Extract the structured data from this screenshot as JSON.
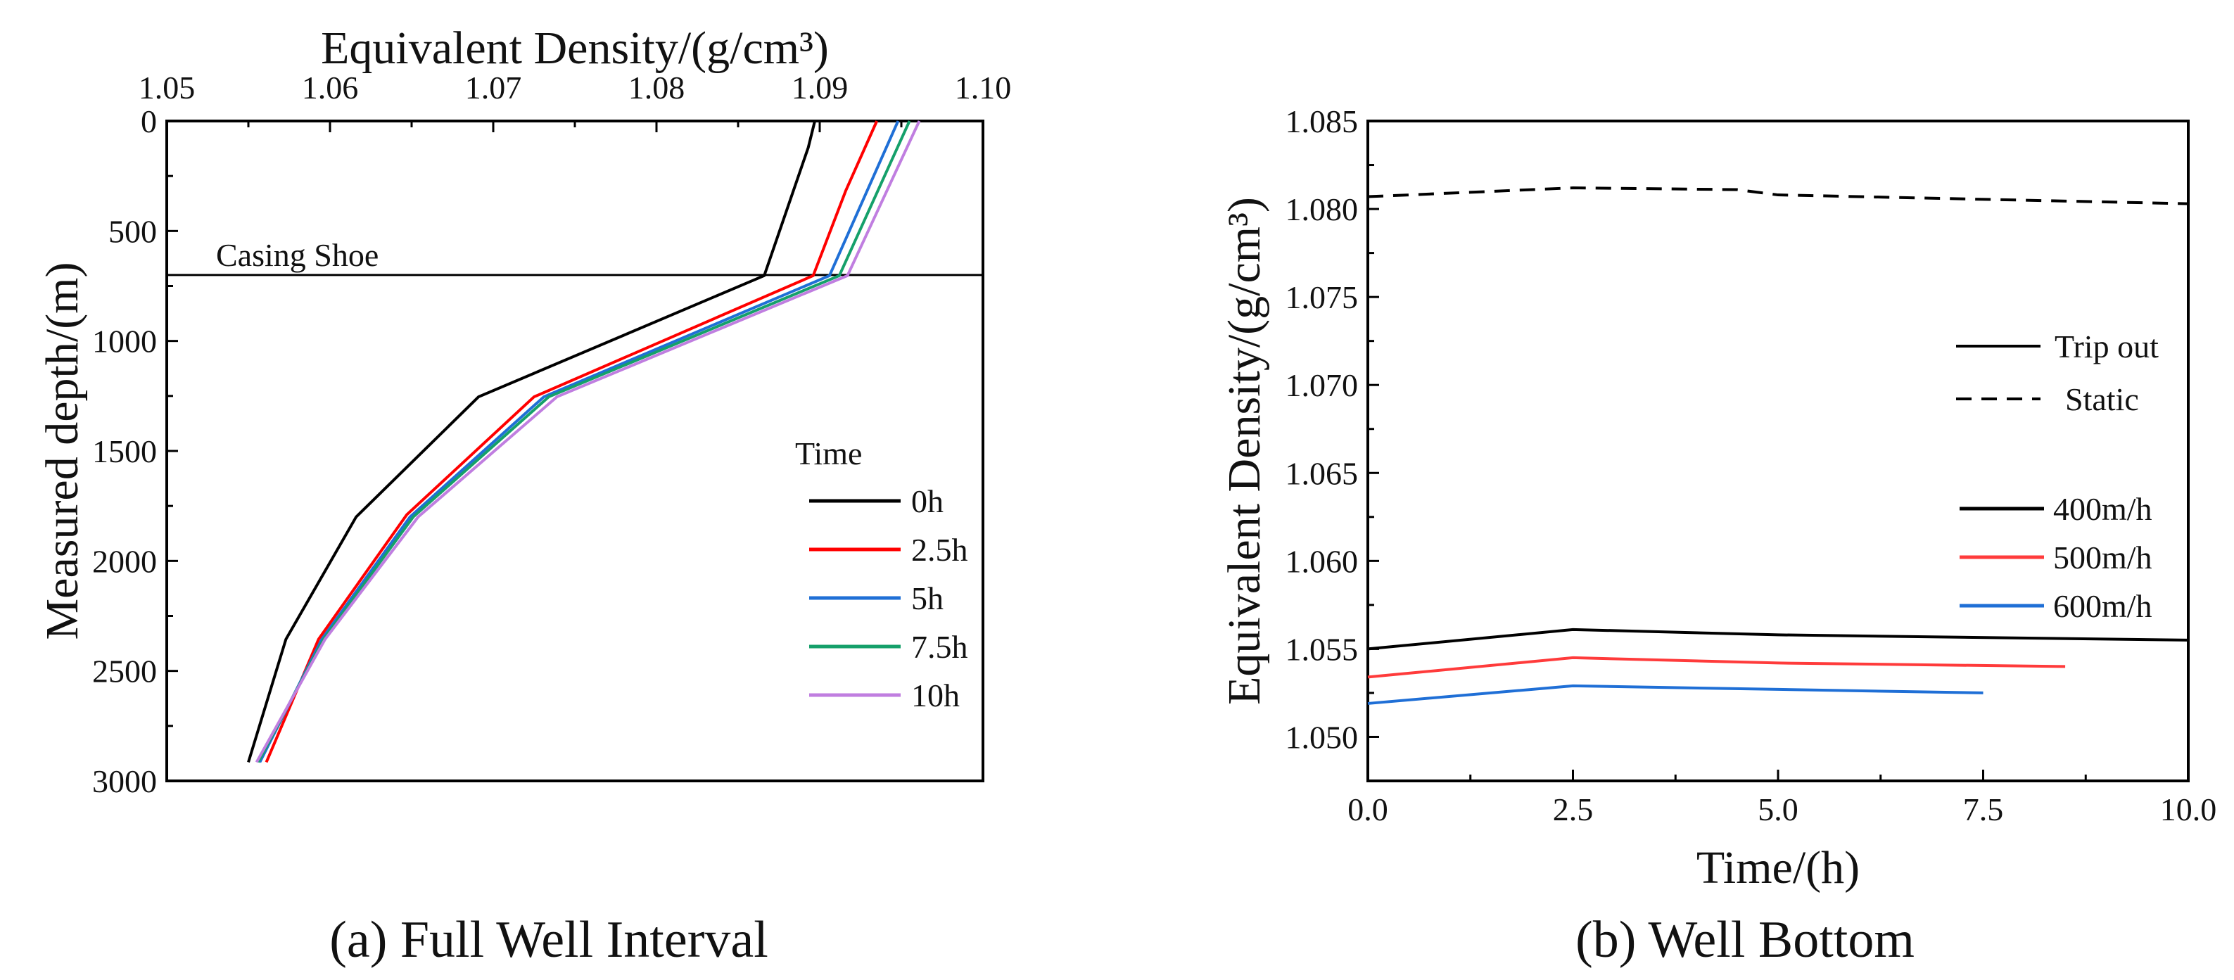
{
  "chart_data": [
    {
      "type": "line",
      "caption": "(a) Full Well Interval",
      "xlabel": "Equivalent Density/(g/cm³)",
      "ylabel": "Measured depth/(m)",
      "xlim": [
        1.05,
        1.1
      ],
      "ylim": [
        0,
        3000
      ],
      "y_inverted": true,
      "x_axis_position": "top",
      "xticks": [
        "1.05",
        "1.06",
        "1.07",
        "1.08",
        "1.09",
        "1.10"
      ],
      "yticks": [
        "0",
        "500",
        "1000",
        "1500",
        "2000",
        "2500",
        "3000"
      ],
      "annotation": {
        "text": "Casing Shoe",
        "depth": 700
      },
      "legend_title": "Time",
      "legend_position": "lower-right",
      "series": [
        {
          "name": "0h",
          "color": "#000000",
          "points": [
            [
              1.0897,
              0
            ],
            [
              1.0893,
              120
            ],
            [
              1.0866,
              703
            ],
            [
              1.0691,
              1254
            ],
            [
              1.0616,
              1800
            ],
            [
              1.0573,
              2356
            ],
            [
              1.055,
              2915
            ]
          ]
        },
        {
          "name": "2.5h",
          "color": "#ff0000",
          "points": [
            [
              1.0935,
              0
            ],
            [
              1.0916,
              316
            ],
            [
              1.0896,
              703
            ],
            [
              1.0725,
              1254
            ],
            [
              1.0647,
              1790
            ],
            [
              1.0593,
              2356
            ],
            [
              1.0561,
              2915
            ]
          ]
        },
        {
          "name": "5h",
          "color": "#1f6fd6",
          "points": [
            [
              1.0948,
              0
            ],
            [
              1.0906,
              703
            ],
            [
              1.0731,
              1254
            ],
            [
              1.0649,
              1800
            ],
            [
              1.0595,
              2356
            ],
            [
              1.0557,
              2915
            ]
          ]
        },
        {
          "name": "7.5h",
          "color": "#15a06a",
          "points": [
            [
              1.0955,
              0
            ],
            [
              1.0912,
              703
            ],
            [
              1.0734,
              1254
            ],
            [
              1.0651,
              1800
            ],
            [
              1.0596,
              2356
            ],
            [
              1.0556,
              2915
            ]
          ]
        },
        {
          "name": "10h",
          "color": "#c07ee0",
          "points": [
            [
              1.0961,
              0
            ],
            [
              1.0917,
              703
            ],
            [
              1.0739,
              1254
            ],
            [
              1.0654,
              1800
            ],
            [
              1.0597,
              2356
            ],
            [
              1.0555,
              2915
            ]
          ]
        }
      ]
    },
    {
      "type": "line",
      "caption": "(b) Well Bottom",
      "xlabel": "Time/(h)",
      "ylabel": "Equivalent Density/(g/cm³)",
      "xlim": [
        0,
        10
      ],
      "ylim": [
        1.0475,
        1.085
      ],
      "xticks": [
        "0.0",
        "2.5",
        "5.0",
        "7.5",
        "10.0"
      ],
      "yticks": [
        "1.050",
        "1.055",
        "1.060",
        "1.065",
        "1.070",
        "1.075",
        "1.080",
        "1.085"
      ],
      "legend_style": [
        {
          "name": "Trip out",
          "dash": false
        },
        {
          "name": "Static",
          "dash": true
        }
      ],
      "legend_position": "right",
      "series": [
        {
          "name": "Static",
          "color": "#000000",
          "dash": true,
          "points": [
            [
              0,
              1.0807
            ],
            [
              2.5,
              1.0812
            ],
            [
              4.5,
              1.0811
            ],
            [
              5,
              1.0808
            ],
            [
              10,
              1.0803
            ]
          ]
        },
        {
          "name": "400m/h",
          "color": "#000000",
          "points": [
            [
              0,
              1.055
            ],
            [
              2.5,
              1.0561
            ],
            [
              5,
              1.0558
            ],
            [
              10,
              1.0555
            ]
          ]
        },
        {
          "name": "500m/h",
          "color": "#ff3b3b",
          "points": [
            [
              0,
              1.0534
            ],
            [
              2.5,
              1.0545
            ],
            [
              5,
              1.0542
            ],
            [
              8.5,
              1.054
            ]
          ]
        },
        {
          "name": "600m/h",
          "color": "#1f6fd6",
          "points": [
            [
              0,
              1.0519
            ],
            [
              2.5,
              1.0529
            ],
            [
              5,
              1.0527
            ],
            [
              7.5,
              1.0525
            ]
          ]
        }
      ]
    }
  ]
}
